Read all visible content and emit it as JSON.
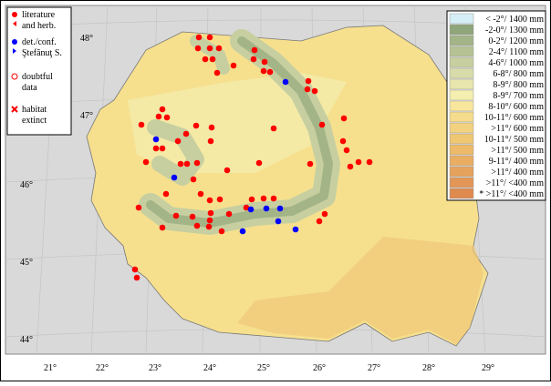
{
  "legend": {
    "items": [
      {
        "lines": [
          "literature",
          "and herb."
        ]
      },
      {
        "lines": [
          "det./conf.",
          "Ştefănuţ S."
        ]
      },
      {
        "lines": [
          "doubtful",
          "data"
        ]
      },
      {
        "lines": [
          "habitat",
          "extinct"
        ]
      }
    ]
  },
  "climate_legend": {
    "items": [
      {
        "label": "< -2°/ 1400 mm",
        "color": "#d6eef6"
      },
      {
        "label": "-2-0°/ 1300 mm",
        "color": "#8fa57a"
      },
      {
        "label": "0-2°/ 1200 mm",
        "color": "#a3b487"
      },
      {
        "label": "2-4°/ 1100 mm",
        "color": "#b6c294"
      },
      {
        "label": "4-6°/ 1000 mm",
        "color": "#c7cfa0"
      },
      {
        "label": "6-8°/ 800 mm",
        "color": "#d8dcaa"
      },
      {
        "label": "8-9°/ 800 mm",
        "color": "#e8e6ac"
      },
      {
        "label": "8-9°/ 700 mm",
        "color": "#f4eeb0"
      },
      {
        "label": "8-10°/ 600 mm",
        "color": "#f8e69c"
      },
      {
        "label": "10-11°/ 600 mm",
        "color": "#f5dc8c"
      },
      {
        "label": ">11°/ 600 mm",
        "color": "#f2d27e"
      },
      {
        "label": "10-11°/ 500 mm",
        "color": "#efc672"
      },
      {
        "label": ">11°/ 500 mm",
        "color": "#ecba68"
      },
      {
        "label": "9-11°/ 400 mm",
        "color": "#e9ae62"
      },
      {
        "label": ">11°/ 400 mm",
        "color": "#e6a25c"
      },
      {
        "label": ">11°/ <400 mm",
        "color": "#e39656"
      },
      {
        "label": "* >11°/ <400 mm",
        "color": "#df8a4e"
      }
    ]
  },
  "longitude_labels": [
    "21°",
    "22°",
    "23°",
    "24°",
    "25°",
    "26°",
    "27°",
    "28°",
    "29°"
  ],
  "latitude_labels": [
    "48°",
    "47°",
    "46°",
    "45°",
    "44°"
  ]
}
